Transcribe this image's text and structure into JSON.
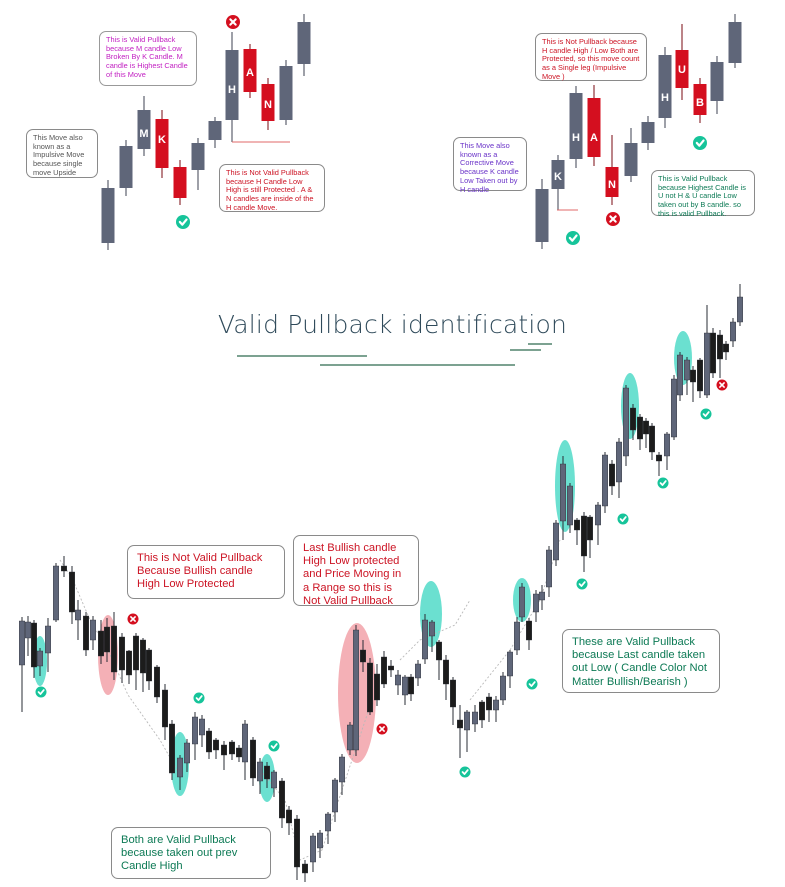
{
  "colors": {
    "bull": "#5f6679",
    "bear": "#1c1c1c",
    "red": "#d40f1f",
    "teal": "#16c49a",
    "teal_fill": "#3ad6c0",
    "pink_fill": "#ef8f97",
    "magenta": "#c21fc2",
    "purple": "#6a33c8",
    "green_text": "#0d7a55",
    "red_text": "#cc1424",
    "title": "#2f4a5a",
    "title_line": "#2d6a4f"
  },
  "title": "Valid Pullback identification",
  "left_example": {
    "candle_letters": [
      "M",
      "K",
      "H",
      "A",
      "N"
    ],
    "note_valid": "This is Valid Pullback because M candle Low Broken By K Candle. M candle is Highest Candle of this Move",
    "note_impulsive": "This Move also known as a Impulsive Move because single move Upside",
    "note_not_valid": "This is Not Valid Pullback because H Candle Low High is still Protected . A & N candles are inside of the H candle Move."
  },
  "right_example": {
    "candle_letters": [
      "K",
      "H",
      "A",
      "N",
      "H",
      "U",
      "B"
    ],
    "note_not_valid": "This is Not Pullback because H candle High / Low Both are Protected, so this move count as a Single leg (Impulsive Move )",
    "note_corrective": "This Move also known as a Corrective Move because K candle Low Taken out by H candle",
    "note_valid": "This is Valid Pullback because Highest Candle is U not H & U candle Low taken out by B candle. so this is valid Pullback."
  },
  "main_chart": {
    "note_not_valid_1": "This is Not Valid Pullback Because Bullish candle High Low Protected",
    "note_not_valid_2": "Last Bullish candle High Low protected and Price Moving in a Range so this is Not Valid Pullback",
    "note_valid_both": "Both are Valid Pullback because taken out prev Candle High",
    "note_valid_these": "These are Valid Pullback because Last candle taken out Low ( Candle Color Not Matter Bullish/Bearish )"
  }
}
